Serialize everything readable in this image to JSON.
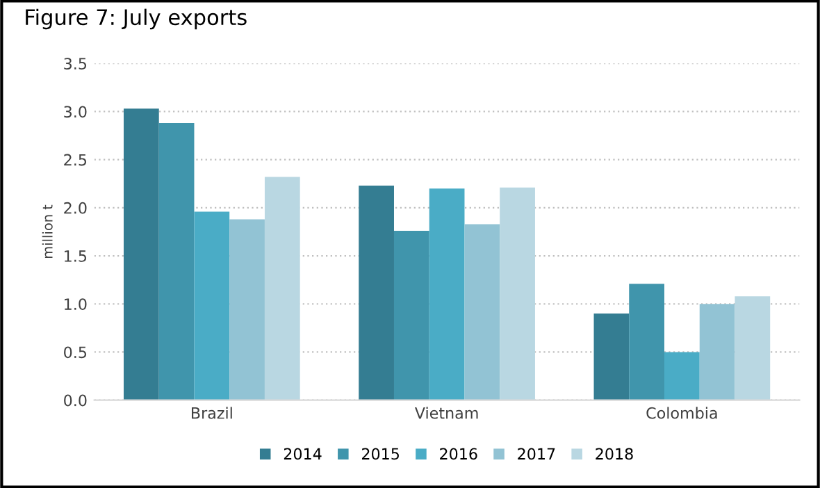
{
  "chart_data": {
    "type": "bar",
    "title": "Figure 7: July exports",
    "ylabel": "million t",
    "categories": [
      "Brazil",
      "Vietnam",
      "Colombia"
    ],
    "series": [
      {
        "name": "2014",
        "color": "#347d92",
        "values": [
          3.03,
          2.23,
          0.9
        ]
      },
      {
        "name": "2015",
        "color": "#4095ac",
        "values": [
          2.88,
          1.76,
          1.21
        ]
      },
      {
        "name": "2016",
        "color": "#4aacc6",
        "values": [
          1.96,
          2.2,
          0.5
        ]
      },
      {
        "name": "2017",
        "color": "#92c3d4",
        "values": [
          1.88,
          1.83,
          1.0
        ]
      },
      {
        "name": "2018",
        "color": "#b9d7e2",
        "values": [
          2.32,
          2.21,
          1.08
        ]
      }
    ],
    "ylim": [
      0,
      3.5
    ],
    "yticks": [
      {
        "value": 0,
        "label": "0.0"
      },
      0.5,
      {
        "value": 1,
        "label": "1.0"
      },
      1.5,
      {
        "value": 2,
        "label": "2.0"
      },
      2.5,
      {
        "value": 3,
        "label": "3.0"
      },
      3.5
    ],
    "grid": "y",
    "legend": "bottom"
  }
}
